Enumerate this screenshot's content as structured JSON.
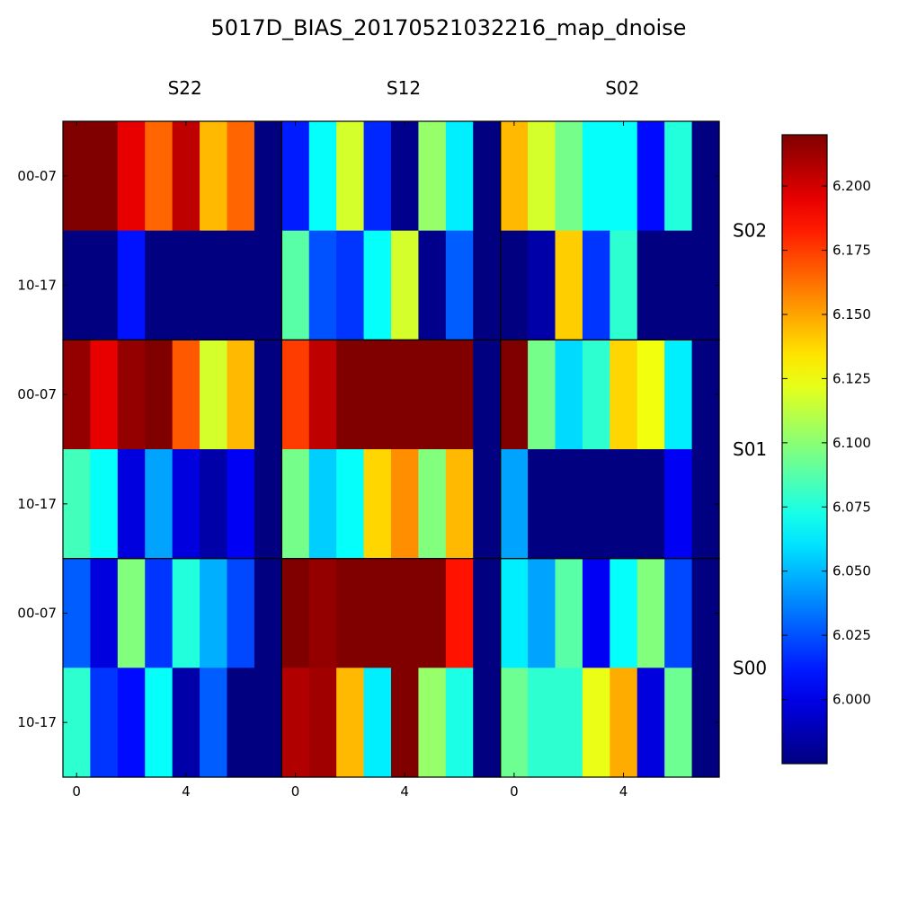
{
  "chart_data": {
    "type": "heatmap",
    "title": "5017D_BIAS_20170521032216_map_dnoise",
    "column_panels": [
      "S22",
      "S12",
      "S02"
    ],
    "row_panels": [
      "S02",
      "S01",
      "S00"
    ],
    "row_labels": [
      "00-07",
      "10-17"
    ],
    "x_ticks": [
      0,
      4
    ],
    "colorbar": {
      "ticks": [
        6.0,
        6.025,
        6.05,
        6.075,
        6.1,
        6.125,
        6.15,
        6.175,
        6.2
      ],
      "tick_labels": [
        "6.000",
        "6.025",
        "6.050",
        "6.075",
        "6.100",
        "6.125",
        "6.150",
        "6.175",
        "6.200"
      ],
      "range": [
        5.975,
        6.22
      ],
      "colormap": "jet"
    },
    "columns_per_panel": 8,
    "panels": [
      {
        "row": "S02",
        "col": "S22",
        "values": [
          [
            6.22,
            6.22,
            6.195,
            6.165,
            6.205,
            6.145,
            6.165,
            5.975
          ],
          [
            5.975,
            5.975,
            6.01,
            5.975,
            5.975,
            5.975,
            5.975,
            5.975
          ]
        ]
      },
      {
        "row": "S02",
        "col": "S12",
        "values": [
          [
            6.012,
            6.068,
            6.118,
            6.015,
            5.978,
            6.103,
            6.063,
            5.975
          ],
          [
            6.088,
            6.025,
            6.018,
            6.068,
            6.118,
            5.978,
            6.028,
            5.975
          ]
        ]
      },
      {
        "row": "S02",
        "col": "S02",
        "values": [
          [
            6.145,
            6.118,
            6.095,
            6.068,
            6.068,
            6.008,
            6.075,
            5.975
          ],
          [
            5.975,
            5.985,
            6.14,
            6.018,
            6.078,
            5.975,
            5.975,
            5.975
          ]
        ]
      },
      {
        "row": "S01",
        "col": "S22",
        "values": [
          [
            6.215,
            6.195,
            6.215,
            6.22,
            6.168,
            6.118,
            6.145,
            5.975
          ],
          [
            6.083,
            6.068,
            5.998,
            6.045,
            5.998,
            5.985,
            6.003,
            5.975
          ]
        ]
      },
      {
        "row": "S01",
        "col": "S12",
        "values": [
          [
            6.175,
            6.205,
            6.22,
            6.22,
            6.22,
            6.22,
            6.22,
            5.975
          ],
          [
            6.095,
            6.055,
            6.068,
            6.138,
            6.155,
            6.098,
            6.145,
            5.975
          ]
        ]
      },
      {
        "row": "S01",
        "col": "S02",
        "values": [
          [
            6.22,
            6.095,
            6.058,
            6.078,
            6.138,
            6.125,
            6.063,
            5.975
          ],
          [
            6.045,
            5.975,
            5.975,
            5.975,
            5.975,
            5.975,
            6.003,
            5.975
          ]
        ]
      },
      {
        "row": "S00",
        "col": "S22",
        "values": [
          [
            6.028,
            5.998,
            6.098,
            6.018,
            6.075,
            6.048,
            6.023,
            5.975
          ],
          [
            6.078,
            6.018,
            6.008,
            6.068,
            5.985,
            6.028,
            5.975,
            5.975
          ]
        ]
      },
      {
        "row": "S00",
        "col": "S12",
        "values": [
          [
            6.22,
            6.215,
            6.22,
            6.22,
            6.22,
            6.22,
            6.185,
            5.975
          ],
          [
            6.208,
            6.212,
            6.145,
            6.063,
            6.22,
            6.103,
            6.073,
            5.975
          ]
        ]
      },
      {
        "row": "S00",
        "col": "S02",
        "values": [
          [
            6.063,
            6.045,
            6.088,
            6.003,
            6.068,
            6.098,
            6.023,
            5.975
          ],
          [
            6.093,
            6.078,
            6.078,
            6.123,
            6.148,
            5.998,
            6.093,
            5.975
          ]
        ]
      }
    ]
  }
}
